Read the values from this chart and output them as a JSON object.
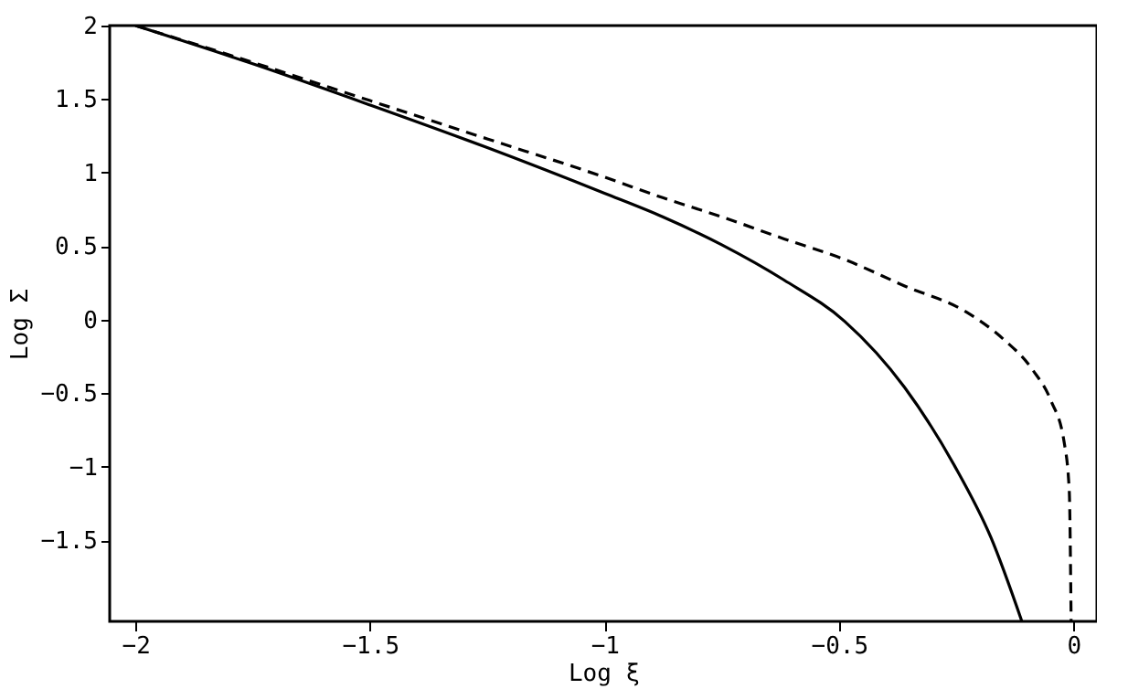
{
  "chart_data": {
    "type": "line",
    "xlabel": "Log ξ",
    "ylabel": "Log Σ",
    "xlim": [
      -2.055,
      0.05
    ],
    "ylim": [
      -2.05,
      2
    ],
    "xticks": [
      -2,
      -1.5,
      -1,
      -0.5,
      0
    ],
    "yticks": [
      -1.5,
      -1,
      -0.5,
      0,
      0.5,
      1,
      1.5,
      2
    ],
    "grid": false,
    "series": [
      {
        "color": "#000000",
        "line_style": "solid",
        "x": [
          -2,
          -1.75,
          -1.5,
          -1.25,
          -1.0,
          -0.876,
          -0.75,
          -0.617,
          -0.488,
          -0.36,
          -0.254,
          -0.176,
          -0.11
        ],
        "values": [
          2.0,
          1.74,
          1.46,
          1.17,
          0.86,
          0.7,
          0.51,
          0.27,
          -0.01,
          -0.46,
          -0.99,
          -1.48,
          -2.05
        ]
      },
      {
        "color": "#000000",
        "line_style": "dashed",
        "x": [
          -2,
          -1.75,
          -1.5,
          -1.25,
          -1.0,
          -0.876,
          -0.75,
          -0.617,
          -0.488,
          -0.36,
          -0.227,
          -0.15,
          -0.087,
          -0.048,
          -0.02,
          -0.009,
          -0.005
        ],
        "values": [
          2.0,
          1.75,
          1.49,
          1.23,
          0.97,
          0.83,
          0.7,
          0.55,
          0.41,
          0.23,
          0.05,
          -0.13,
          -0.34,
          -0.55,
          -0.83,
          -1.16,
          -2.05
        ]
      }
    ]
  }
}
